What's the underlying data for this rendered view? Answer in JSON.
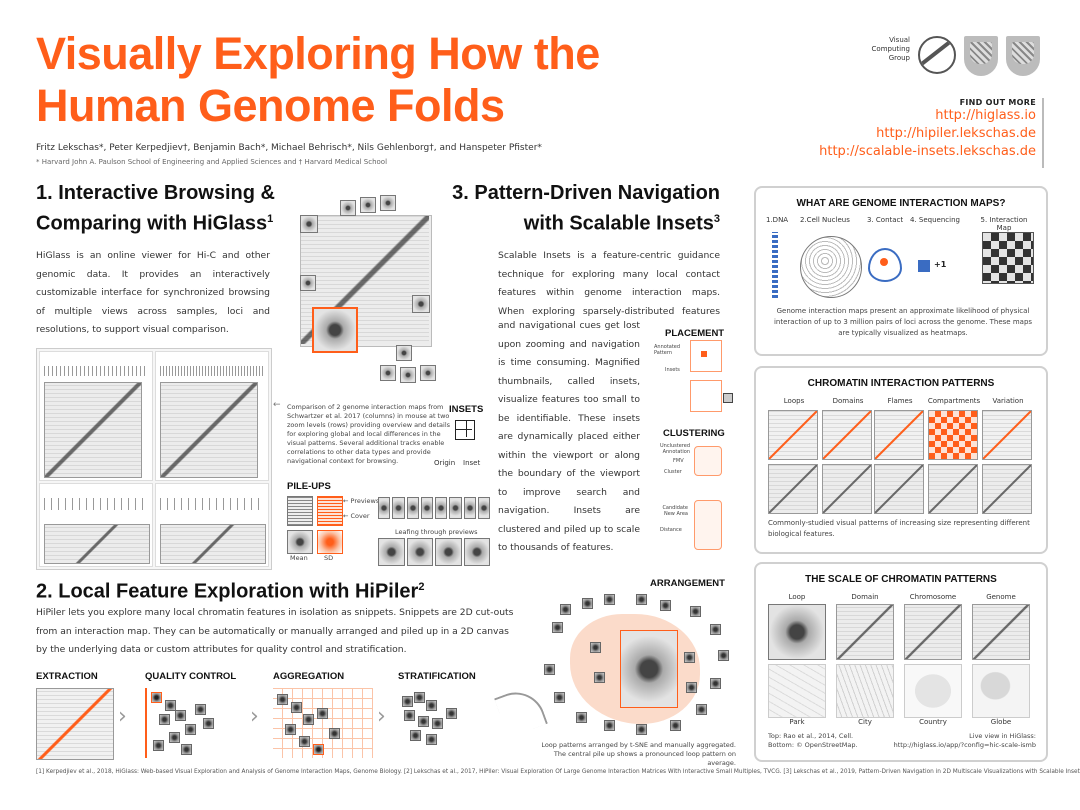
{
  "header": {
    "title_line1": "Visually Exploring How the",
    "title_line2": "Human Genome Folds",
    "authors": "Fritz Lekschas*, Peter Kerpedjiev†, Benjamin Bach*, Michael Behrisch*, Nils Gehlenborg†, and Hanspeter Pfister*",
    "affiliations": "* Harvard John A. Paulson School of Engineering and Applied Sciences and † Harvard Medical School",
    "logo_text_1": "Visual",
    "logo_text_2": "Computing",
    "logo_text_3": "Group"
  },
  "find_out": {
    "heading": "FIND OUT MORE",
    "links": [
      "http://higlass.io",
      "http://hipiler.lekschas.de",
      "http://scalable-insets.lekschas.de"
    ]
  },
  "section1": {
    "title_line1": "1. Interactive Browsing &",
    "title_line2": "Comparing with HiGlass",
    "title_sup": "1",
    "body": "HiGlass is an online viewer for Hi-C and other genomic data. It provides an interactively customizable interface for synchronized browsing of multiple views across samples, loci and resolutions, to support visual comparison.",
    "caption": "Comparison of 2 genome interaction maps from Schwartzer et al. 2017 (columns) in mouse at two zoom levels (rows) providing overview and details for exploring global and local differences in the visual patterns. Several additional tracks enable correlations to other data types and provide navigational context for browsing."
  },
  "section2": {
    "title": "2. Local Feature Exploration with HiPiler",
    "title_sup": "2",
    "body": "HiPiler lets you explore many local chromatin features in isolation as snippets. Snippets are 2D cut-outs from an interaction map. They can be automatically or manually arranged and piled up in a 2D canvas by the underlying data or custom attributes for quality control and stratification.",
    "stages": [
      "EXTRACTION",
      "QUALITY CONTROL",
      "AGGREGATION",
      "STRATIFICATION"
    ],
    "arrangement_label": "ARRANGEMENT",
    "arrangement_caption_1": "Loop patterns arranged by t-SNE and manually aggregated.",
    "arrangement_caption_2": "The central pile up shows a pronounced loop pattern on average."
  },
  "section3": {
    "title_line1": "3. Pattern-Driven Navigation",
    "title_line2": "with Scalable Insets",
    "title_sup": "3",
    "body": "Scalable Insets is a feature-centric guidance technique for exploring many local contact features within genome interaction maps. When exploring sparsely-distributed features context and navigational cues get lost upon zooming and navigation is time consuming. Magnified thumbnails, called insets, visualize features too small to be identifiable. These insets are dynamically placed either within the viewport or along the boundary of the viewport to improve search and navigation. Insets are clustered and piled up to scale to thousands of features.",
    "insets_label": "INSETS",
    "insets_origin": "Origin",
    "insets_inset": "Inset",
    "pileups_label": "PILE-UPS",
    "pileups_previews": "Previews",
    "pileups_cover": "Cover",
    "pileups_mean": "Mean",
    "pileups_sd": "SD",
    "pileups_leafing": "Leafing through previews",
    "placement_label": "PLACEMENT",
    "placement_annotated": "Annotated Pattern",
    "placement_insets": "Insets",
    "clustering_label": "CLUSTERING",
    "clustering_unclustered": "Unclustered Annotation",
    "clustering_fmv": "FMV",
    "clustering_cluster": "Cluster",
    "clustering_candidate": "Candidate New Area",
    "clustering_distance": "Distance"
  },
  "panel_genome": {
    "title": "WHAT ARE GENOME INTERACTION MAPS?",
    "steps": [
      "1.DNA",
      "2.Cell Nucleus",
      "3. Contact",
      "4. Sequencing",
      "5. Interaction Map"
    ],
    "plus_one": "+1",
    "caption": "Genome interaction maps present an approximate likelihood of physical interaction of up to 3 million pairs of loci across the genome. These maps are typically visualized as heatmaps."
  },
  "panel_patterns": {
    "title": "CHROMATIN INTERACTION PATTERNS",
    "columns": [
      "Loops",
      "Domains",
      "Flames",
      "Compartments",
      "Variation"
    ],
    "caption": "Commonly-studied visual patterns of increasing size representing different biological features."
  },
  "panel_scale": {
    "title": "THE SCALE OF CHROMATIN PATTERNS",
    "top_labels": [
      "Loop",
      "Domain",
      "Chromosome",
      "Genome"
    ],
    "bottom_labels": [
      "Park",
      "City",
      "Country",
      "Globe"
    ],
    "credit_1": "Top: Rao et al., 2014, Cell.",
    "credit_2": "Bottom: © OpenStreetMap.",
    "live_1": "Live view in HiGlass:",
    "live_2": "http://higlass.io/app/?config=hic-scale-ismb"
  },
  "footer": "[1] Kerpedjiev et al., 2018, HiGlass: Web-based Visual Exploration and Analysis of Genome Interaction Maps, Genome Biology. [2] Lekschas et al., 2017, HiPiler: Visual Exploration Of Large Genome Interaction Matrices With Interactive Small Multiples, TVCG. [3] Lekschas et al., 2019, Pattern-Driven Navigation in 2D Multiscale Visualizations with Scalable Insets, bioRxiv.",
  "colors": {
    "accent": "#ff5e1a",
    "panel_border": "#d0d0d0"
  }
}
